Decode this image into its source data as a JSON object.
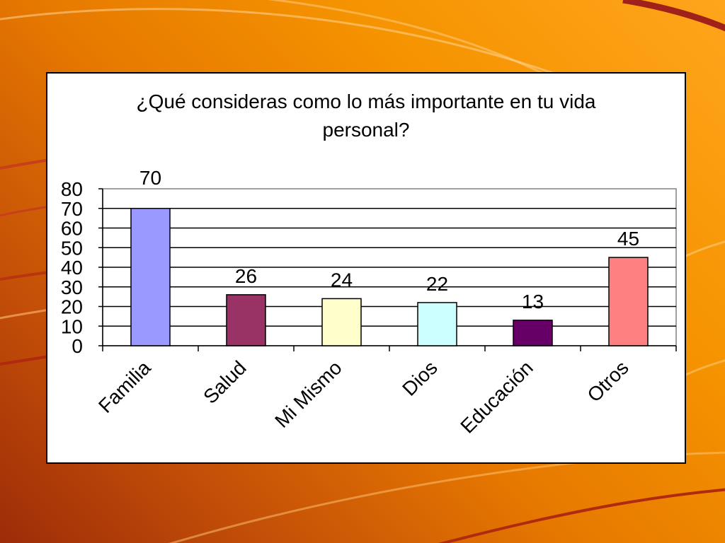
{
  "chart_data": {
    "type": "bar",
    "title": "¿Qué consideras como lo más importante en tu vida personal?",
    "xlabel": "",
    "ylabel": "",
    "categories": [
      "Familia",
      "Salud",
      "Mi Mismo",
      "Dios",
      "Educación",
      "Otros"
    ],
    "values": [
      70,
      26,
      24,
      22,
      13,
      45
    ],
    "colors": [
      "#9999FF",
      "#993366",
      "#FFFFCC",
      "#CCFFFF",
      "#660066",
      "#FF8080"
    ],
    "ylim": [
      0,
      80
    ],
    "yticks": [
      0,
      10,
      20,
      30,
      40,
      50,
      60,
      70,
      80
    ],
    "grid": true,
    "legend": "none",
    "data_labels": true
  },
  "background": {
    "accent_light": "#FFD28C",
    "accent_dark": "#A0201A"
  }
}
